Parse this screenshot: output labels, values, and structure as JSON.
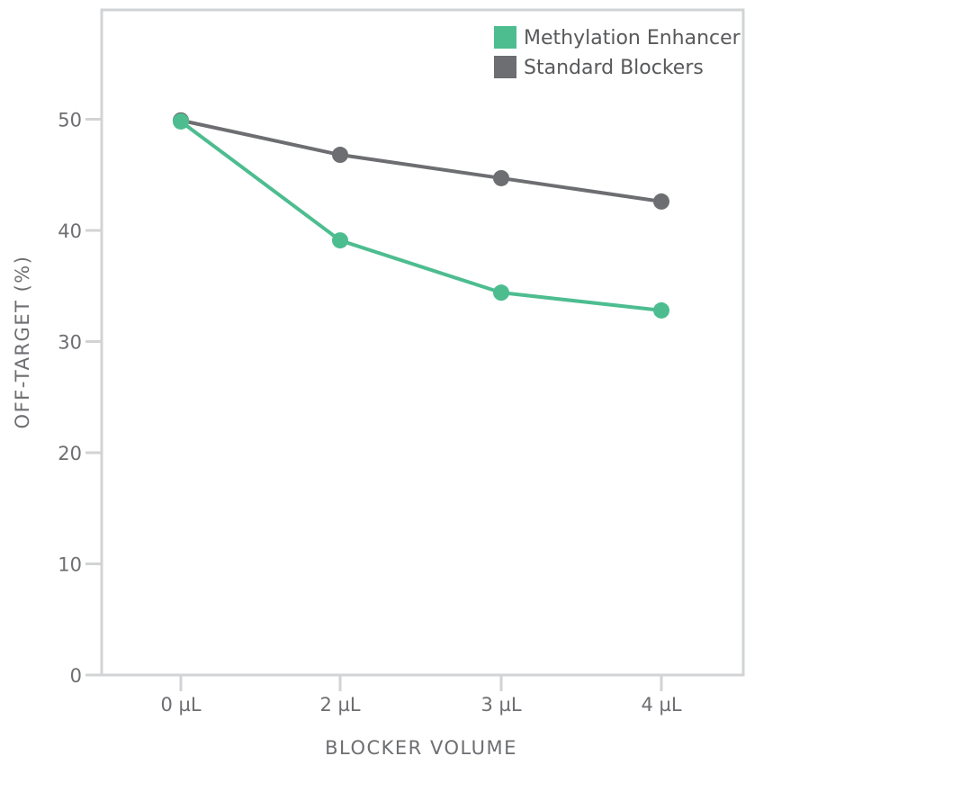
{
  "chart_data": {
    "type": "line",
    "title": "",
    "xlabel": "BLOCKER VOLUME",
    "ylabel": "OFF-TARGET (%)",
    "categories": [
      "0 µL",
      "2 µL",
      "3 µL",
      "4 µL"
    ],
    "ylim": [
      0,
      60
    ],
    "yticks": [
      0,
      10,
      20,
      30,
      40,
      50
    ],
    "grid": false,
    "legend_position": "top-right",
    "series": [
      {
        "name": "Methylation Enhancer",
        "color": "#4dbd90",
        "values": [
          49.8,
          39.1,
          34.4,
          32.8
        ]
      },
      {
        "name": "Standard Blockers",
        "color": "#6d6e71",
        "values": [
          49.9,
          46.8,
          44.7,
          42.6
        ]
      }
    ]
  },
  "colors": {
    "frame": "#d1d3d4",
    "text": "#6d6e71"
  }
}
